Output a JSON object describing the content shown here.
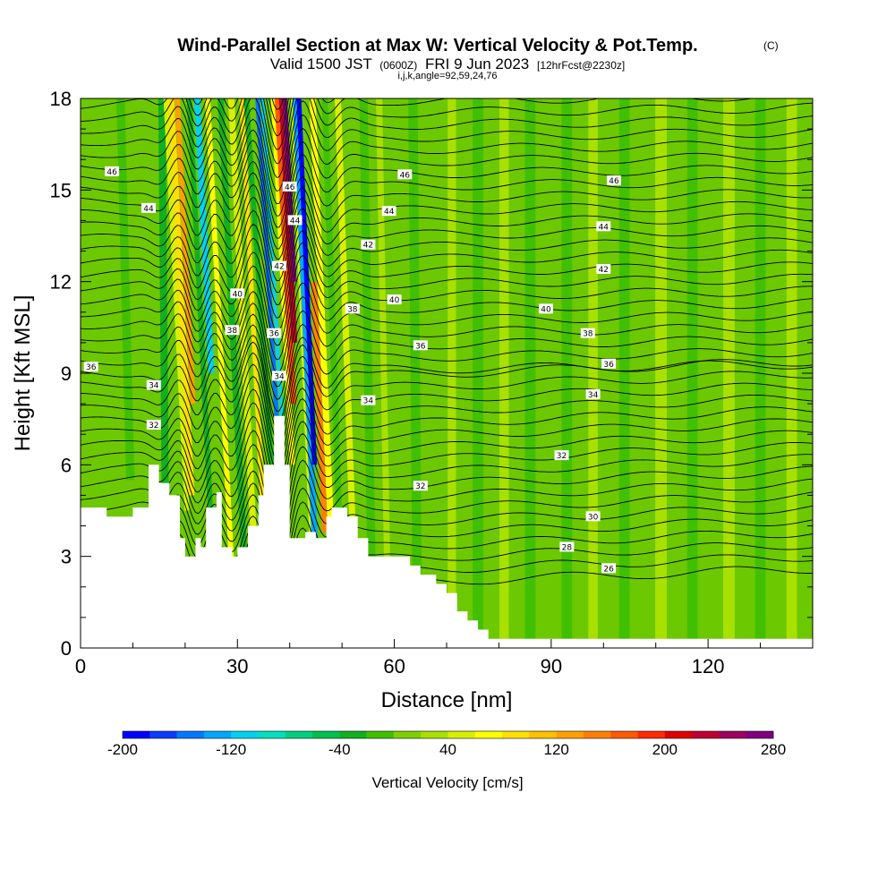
{
  "header": {
    "title": "Wind-Parallel Section at Max W: Vertical Velocity & Pot.Temp.",
    "title_mark": "(C)",
    "valid_prefix": "Valid 1500 JST",
    "valid_utc": "(0600Z)",
    "valid_date": "FRI 9 Jun 2023",
    "forecast": "[12hrFcst@2230z]",
    "indices": "i,j,k,angle=92,59,24,76"
  },
  "chart_data": {
    "type": "heatmap",
    "xlabel": "Distance [nm]",
    "ylabel": "Height [Kft MSL]",
    "xlim": [
      0,
      140
    ],
    "ylim": [
      0,
      18
    ],
    "x_ticks": [
      0,
      30,
      60,
      90,
      120
    ],
    "y_ticks": [
      0,
      3,
      6,
      9,
      12,
      15,
      18
    ],
    "colorbar": {
      "label": "Vertical Velocity [cm/s]",
      "range": [
        -200,
        280
      ],
      "step": 20,
      "tick_values": [
        -200,
        -120,
        -40,
        40,
        120,
        200,
        280
      ],
      "tick_labels": [
        "-200",
        "-120",
        "-40",
        "40",
        "120",
        "200",
        "280"
      ],
      "colors": [
        "#0000ff",
        "#0a3cff",
        "#0078ff",
        "#00a8ff",
        "#00d2f0",
        "#00e0c0",
        "#00d080",
        "#00c050",
        "#10b020",
        "#40c000",
        "#80d000",
        "#a8e000",
        "#d8f000",
        "#ffff00",
        "#ffe000",
        "#ffc000",
        "#ffa000",
        "#ff8000",
        "#ff5a00",
        "#ff2a00",
        "#e00000",
        "#c00030",
        "#a00060",
        "#800080"
      ]
    },
    "terrain": [
      [
        0,
        4.6
      ],
      [
        5,
        4.6
      ],
      [
        5,
        4.3
      ],
      [
        10,
        4.3
      ],
      [
        10,
        4.6
      ],
      [
        13,
        4.6
      ],
      [
        13,
        6.0
      ],
      [
        15,
        6.0
      ],
      [
        15,
        5.4
      ],
      [
        17,
        5.4
      ],
      [
        17,
        5.0
      ],
      [
        19,
        5.0
      ],
      [
        19,
        3.6
      ],
      [
        20,
        3.6
      ],
      [
        20,
        3.0
      ],
      [
        22,
        3.0
      ],
      [
        22,
        3.6
      ],
      [
        23,
        3.6
      ],
      [
        23,
        3.3
      ],
      [
        24,
        3.3
      ],
      [
        24,
        4.6
      ],
      [
        26,
        4.6
      ],
      [
        26,
        5.1
      ],
      [
        27,
        5.1
      ],
      [
        27,
        3.3
      ],
      [
        29,
        3.3
      ],
      [
        29,
        3.0
      ],
      [
        30,
        3.0
      ],
      [
        30,
        3.3
      ],
      [
        32,
        3.3
      ],
      [
        32,
        4.0
      ],
      [
        34,
        4.0
      ],
      [
        34,
        5.0
      ],
      [
        35,
        5.0
      ],
      [
        35,
        6.0
      ],
      [
        37,
        6.0
      ],
      [
        37,
        7.6
      ],
      [
        39,
        7.6
      ],
      [
        39,
        6.0
      ],
      [
        40,
        6.0
      ],
      [
        40,
        3.6
      ],
      [
        43,
        3.6
      ],
      [
        43,
        3.8
      ],
      [
        45,
        3.8
      ],
      [
        45,
        3.6
      ],
      [
        47,
        3.6
      ],
      [
        47,
        4.3
      ],
      [
        48,
        4.3
      ],
      [
        48,
        4.6
      ],
      [
        51,
        4.6
      ],
      [
        51,
        4.3
      ],
      [
        53,
        4.3
      ],
      [
        53,
        3.6
      ],
      [
        55,
        3.6
      ],
      [
        55,
        3.0
      ],
      [
        63,
        3.0
      ],
      [
        63,
        2.7
      ],
      [
        65,
        2.7
      ],
      [
        65,
        2.4
      ],
      [
        68,
        2.4
      ],
      [
        68,
        2.1
      ],
      [
        70,
        2.1
      ],
      [
        70,
        1.8
      ],
      [
        72,
        1.8
      ],
      [
        72,
        1.2
      ],
      [
        74,
        1.2
      ],
      [
        74,
        0.9
      ],
      [
        76,
        0.9
      ],
      [
        76,
        0.6
      ],
      [
        78,
        0.6
      ],
      [
        78,
        0.3
      ],
      [
        140,
        0.3
      ]
    ],
    "theta_contours": [
      {
        "value": "26",
        "label_at": [
          101,
          2.6
        ]
      },
      {
        "value": "28",
        "label_at": [
          93,
          3.3
        ]
      },
      {
        "value": "30",
        "label_at": [
          98,
          4.3
        ]
      },
      {
        "value": "32",
        "label_at": [
          65,
          5.3
        ]
      },
      {
        "value": "32",
        "label_at": [
          92,
          6.3
        ]
      },
      {
        "value": "32",
        "label_at": [
          14,
          7.3
        ]
      },
      {
        "value": "34",
        "label_at": [
          55,
          8.1
        ]
      },
      {
        "value": "34",
        "label_at": [
          98,
          8.3
        ]
      },
      {
        "value": "34",
        "label_at": [
          14,
          8.6
        ]
      },
      {
        "value": "34",
        "label_at": [
          38,
          8.9
        ]
      },
      {
        "value": "36",
        "label_at": [
          2,
          9.2
        ]
      },
      {
        "value": "36",
        "label_at": [
          101,
          9.3
        ]
      },
      {
        "value": "36",
        "label_at": [
          65,
          9.9
        ]
      },
      {
        "value": "36",
        "label_at": [
          37,
          10.3
        ]
      },
      {
        "value": "38",
        "label_at": [
          29,
          10.4
        ]
      },
      {
        "value": "38",
        "label_at": [
          97,
          10.3
        ]
      },
      {
        "value": "38",
        "label_at": [
          52,
          11.1
        ]
      },
      {
        "value": "40",
        "label_at": [
          60,
          11.4
        ]
      },
      {
        "value": "40",
        "label_at": [
          89,
          11.1
        ]
      },
      {
        "value": "40",
        "label_at": [
          30,
          11.6
        ]
      },
      {
        "value": "42",
        "label_at": [
          100,
          12.4
        ]
      },
      {
        "value": "42",
        "label_at": [
          55,
          13.2
        ]
      },
      {
        "value": "42",
        "label_at": [
          38,
          12.5
        ]
      },
      {
        "value": "44",
        "label_at": [
          100,
          13.8
        ]
      },
      {
        "value": "44",
        "label_at": [
          59,
          14.3
        ]
      },
      {
        "value": "44",
        "label_at": [
          41,
          14.0
        ]
      },
      {
        "value": "44",
        "label_at": [
          13,
          14.4
        ]
      },
      {
        "value": "46",
        "label_at": [
          102,
          15.3
        ]
      },
      {
        "value": "46",
        "label_at": [
          62,
          15.5
        ]
      },
      {
        "value": "46",
        "label_at": [
          40,
          15.1
        ]
      },
      {
        "value": "46",
        "label_at": [
          6,
          15.6
        ]
      }
    ]
  }
}
